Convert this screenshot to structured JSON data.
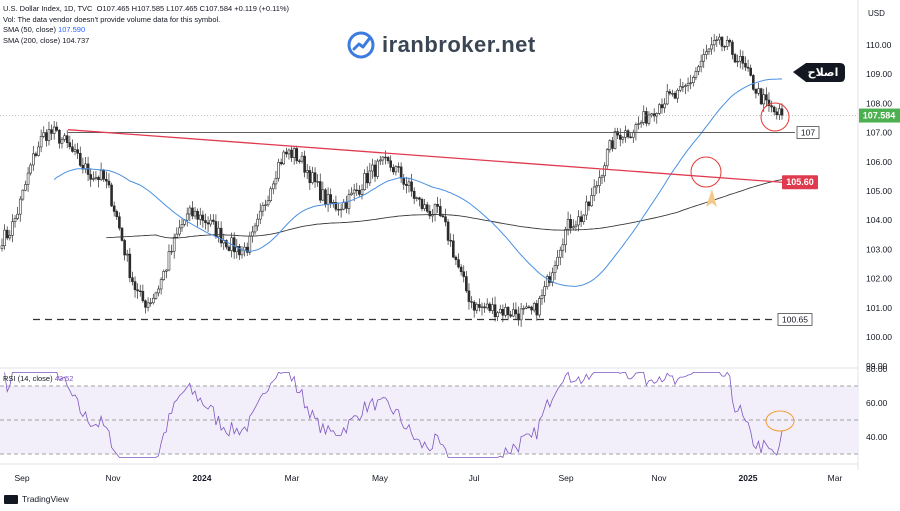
{
  "header": {
    "title_line": "U.S. Dollar Index, 1D, TVC",
    "ohlc": "O107.465 H107.585 L107.465 C107.584 +0.119 (+0.11%)",
    "vol_line": "Vol: The data vendor doesn't provide volume data for this symbol.",
    "sma50_label": "SMA (50, close)",
    "sma50_value": "107.590",
    "sma200_label": "SMA (200, close)",
    "sma200_value": "104.737"
  },
  "watermark": "iranbroker.net",
  "unit": "USD",
  "rsi": {
    "label": "RSI (14, close)",
    "value": "43.52"
  },
  "branding": "TradingView",
  "colors": {
    "up": "#26a69a",
    "down": "#ef5350",
    "candle": "#2b2b2b",
    "sma50": "#4a90e2",
    "sma200": "#3a3a3a",
    "trendline": "#e03a4e",
    "rsi": "#7e57c2",
    "last_price": "#4caf50"
  },
  "chart_data": [
    {
      "type": "candlestick",
      "ylim": [
        99.0,
        110.5
      ],
      "x_ticks": [
        "Sep",
        "Nov",
        "2024",
        "Mar",
        "May",
        "Jul",
        "Sep",
        "Nov",
        "2025",
        "Mar"
      ],
      "y_ticks": [
        "110.00",
        "109.00",
        "108.00",
        "107.00",
        "106.00",
        "105.00",
        "104.00",
        "103.00",
        "102.00",
        "101.00",
        "100.00",
        "99.00"
      ],
      "last_price": "107.584",
      "levels": [
        {
          "label": "107",
          "value": 107.0
        },
        {
          "label": "100.65",
          "value": 100.6
        }
      ],
      "trendline": {
        "label": "105.60",
        "start": 107.1,
        "end": 105.3
      },
      "annotation": "اصلاح",
      "key_closes": [
        [
          "Aug 2023",
          103.4
        ],
        [
          "Oct 2023",
          107.0
        ],
        [
          "Nov 2023",
          105.5
        ],
        [
          "Dec 2023",
          101.2
        ],
        [
          "Feb 2024",
          104.2
        ],
        [
          "Mar 2024",
          103.0
        ],
        [
          "Apr 2024",
          106.3
        ],
        [
          "May 2024",
          104.5
        ],
        [
          "Jun 2024",
          105.9
        ],
        [
          "Jul 2024",
          104.3
        ],
        [
          "Aug 2024",
          101.0
        ],
        [
          "Sep 2024",
          100.8
        ],
        [
          "Oct 2024",
          104.0
        ],
        [
          "Nov 2024",
          107.0
        ],
        [
          "Dec 2024",
          108.2
        ],
        [
          "Jan 2025",
          110.0
        ],
        [
          "Feb 2025",
          107.6
        ]
      ]
    },
    {
      "type": "line",
      "name": "RSI (14, close)",
      "ylim": [
        25,
        82
      ],
      "y_ticks": [
        "80.00",
        "60.00",
        "40.00"
      ],
      "bands": [
        70,
        50,
        30
      ],
      "last_value": 43.52
    }
  ]
}
